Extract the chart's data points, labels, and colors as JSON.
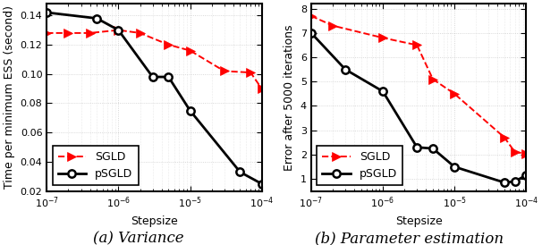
{
  "ax1": {
    "sgld_x": [
      1e-07,
      2e-07,
      4e-07,
      1e-06,
      2e-06,
      5e-06,
      1e-05,
      3e-05,
      7e-05,
      0.0001
    ],
    "sgld_y": [
      0.128,
      0.128,
      0.128,
      0.13,
      0.128,
      0.12,
      0.116,
      0.102,
      0.101,
      0.09
    ],
    "psgld_x": [
      1e-07,
      5e-07,
      1e-06,
      3e-06,
      5e-06,
      1e-05,
      5e-05,
      0.0001
    ],
    "psgld_y": [
      0.142,
      0.138,
      0.13,
      0.098,
      0.098,
      0.075,
      0.033,
      0.025
    ],
    "ylabel": "Time per minimum ESS (second)",
    "xlabel": "Stepsize",
    "caption": "(a) Variance",
    "ylim": [
      0.02,
      0.148
    ],
    "xlim": [
      1e-07,
      0.0001
    ],
    "yticks": [
      0.02,
      0.04,
      0.06,
      0.08,
      0.1,
      0.12,
      0.14
    ]
  },
  "ax2": {
    "sgld_x": [
      1e-07,
      2e-07,
      1e-06,
      3e-06,
      5e-06,
      1e-05,
      5e-05,
      7e-05,
      0.0001
    ],
    "sgld_y": [
      7.7,
      7.3,
      6.8,
      6.5,
      5.1,
      4.5,
      2.7,
      2.1,
      2.05
    ],
    "psgld_x": [
      1e-07,
      3e-07,
      1e-06,
      3e-06,
      5e-06,
      1e-05,
      5e-05,
      7e-05,
      0.0001
    ],
    "psgld_y": [
      7.0,
      5.5,
      4.6,
      2.3,
      2.25,
      1.5,
      0.85,
      0.9,
      1.15
    ],
    "ylabel": "Error after 5000 iterations",
    "xlabel": "Stepsize",
    "caption": "(b) Parameter estimation",
    "ylim": [
      0.5,
      8.2
    ],
    "xlim": [
      1e-07,
      0.0001
    ],
    "yticks": [
      1,
      2,
      3,
      4,
      5,
      6,
      7,
      8
    ]
  },
  "sgld_color": "#ff0000",
  "psgld_color": "#000000",
  "sgld_label": "SGLD",
  "psgld_label": "pSGLD",
  "grid_color": "#cccccc",
  "bg_color": "#ffffff",
  "caption_fontsize": 12,
  "axis_label_fontsize": 9,
  "tick_fontsize": 8,
  "legend_fontsize": 9
}
